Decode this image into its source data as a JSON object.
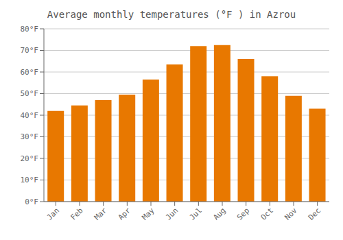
{
  "chart_data": {
    "type": "bar",
    "title": "Average monthly temperatures (°F ) in Azrou",
    "categories": [
      "Jan",
      "Feb",
      "Mar",
      "Apr",
      "May",
      "Jun",
      "Jul",
      "Aug",
      "Sep",
      "Oct",
      "Nov",
      "Dec"
    ],
    "values": [
      42,
      44.5,
      47,
      49.5,
      56.5,
      63.5,
      72,
      72.5,
      66,
      58,
      49,
      43
    ],
    "color": "#E87800",
    "ylim": [
      0,
      80
    ],
    "yticks": [
      {
        "value": 0,
        "label": "0°F"
      },
      {
        "value": 10,
        "label": "10°F"
      },
      {
        "value": 20,
        "label": "20°F"
      },
      {
        "value": 30,
        "label": "30°F"
      },
      {
        "value": 40,
        "label": "40°F"
      },
      {
        "value": 50,
        "label": "50°F"
      },
      {
        "value": 60,
        "label": "60°F"
      },
      {
        "value": 70,
        "label": "70°F"
      },
      {
        "value": 80,
        "label": "80°F"
      }
    ],
    "grid": true
  }
}
